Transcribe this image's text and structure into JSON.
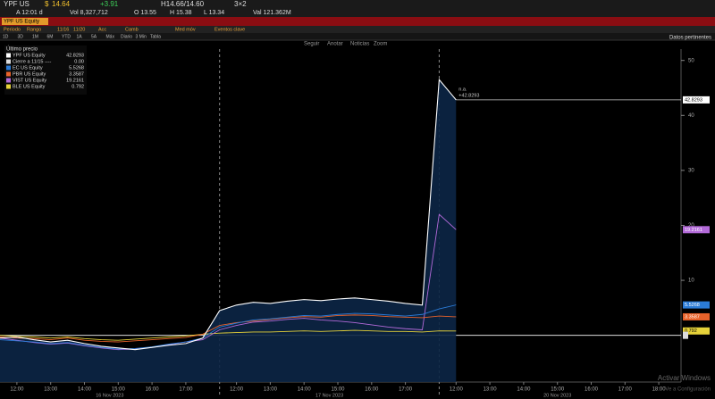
{
  "header": {
    "ticker": "YPF US",
    "currency": "$",
    "price": "14.64",
    "change": "+3.91",
    "hilo": "H14.66/14.60",
    "size": "3×2",
    "time": "A 12:01 d",
    "volume": "Vol 8,327,712",
    "open": "O 13.55",
    "high": "H 15.38",
    "low": "L 13.34",
    "value": "Val 121.362M"
  },
  "toolbar": {
    "security": "YPF US Equity",
    "items": [
      "Periodo",
      "Rango",
      "11/16",
      "11/20",
      "Acc",
      "Camb",
      "Med móv",
      "Eventos clave"
    ]
  },
  "periods": [
    "1D",
    "3D",
    "1M",
    "6M",
    "YTD",
    "1A",
    "5A",
    "Máx",
    "Diario",
    "3 Min",
    "Tabla"
  ],
  "chart_menu": [
    "Seguir",
    "Anotar",
    "Noticias",
    "Zoom"
  ],
  "side_label": "Datos pertinentes",
  "watermark": [
    "Activar Windows",
    "Ve a Configuración"
  ],
  "chart_data": {
    "type": "line",
    "legend_title": "Último precio",
    "categories": [
      null,
      "12:00",
      null,
      "13:00",
      null,
      "14:00",
      null,
      "15:00",
      null,
      "16:00",
      null,
      "17:00",
      null,
      null,
      "12:00",
      null,
      "13:00",
      null,
      "14:00",
      null,
      "15:00",
      null,
      "16:00",
      null,
      "17:00",
      null,
      null,
      "12:00",
      null,
      "13:00",
      null,
      "14:00",
      null,
      "15:00",
      null,
      "16:00",
      null,
      "17:00",
      null,
      "18:00"
    ],
    "x_groups": [
      "16 Nov 2023",
      "17 Nov 2023",
      "20 Nov 2023"
    ],
    "ylim": [
      -8.5,
      54.5
    ],
    "yticks": [
      10,
      20,
      30,
      40,
      50
    ],
    "reference": {
      "name": "Cierre a 11/15 ----",
      "value": {
        "value": 0,
        "label": "0.00"
      }
    },
    "annotations": [
      "n.a.",
      "+42.8293"
    ],
    "series": [
      {
        "name": "YPF US Equity",
        "color": "#ffffff",
        "fill": "#0c2646",
        "values": [
          -0.5,
          -0.3,
          -0.8,
          -1.2,
          -0.9,
          -1.5,
          -2.0,
          -2.3,
          -2.6,
          -2.2,
          -1.8,
          -1.5,
          -0.5,
          4.5,
          5.5,
          6.0,
          5.8,
          6.2,
          6.5,
          6.3,
          6.6,
          6.8,
          6.5,
          6.2,
          5.8,
          5.5,
          46.5,
          42.8293,
          null,
          null,
          null,
          null,
          null,
          null,
          null,
          null,
          null,
          null,
          null,
          null
        ]
      },
      {
        "name": "EC US Equity",
        "color": "#2b7bd6",
        "values": [
          -0.8,
          -1.0,
          -1.2,
          -1.5,
          -1.3,
          -1.8,
          -2.2,
          -2.5,
          -2.4,
          -2.1,
          -1.6,
          -1.2,
          -0.5,
          1.5,
          2.2,
          2.8,
          3.0,
          3.3,
          3.6,
          3.5,
          3.8,
          4.0,
          3.9,
          3.7,
          3.5,
          3.8,
          4.8,
          5.5268,
          null,
          null,
          null,
          null,
          null,
          null,
          null,
          null,
          null,
          null,
          null,
          null
        ]
      },
      {
        "name": "PBR US Equity",
        "color": "#e8622a",
        "values": [
          -0.3,
          -0.5,
          -0.6,
          -0.8,
          -0.5,
          -0.9,
          -1.1,
          -1.2,
          -1.0,
          -0.8,
          -0.6,
          -0.4,
          0.2,
          1.8,
          2.3,
          2.6,
          2.9,
          3.2,
          3.4,
          3.3,
          3.6,
          3.7,
          3.6,
          3.4,
          3.3,
          3.2,
          3.5,
          3.3587,
          null,
          null,
          null,
          null,
          null,
          null,
          null,
          null,
          null,
          null,
          null,
          null
        ]
      },
      {
        "name": "VIST US Equity",
        "color": "#b36ad9",
        "values": [
          -0.5,
          -0.9,
          -1.3,
          -1.6,
          -1.4,
          -1.9,
          -2.3,
          -2.6,
          -2.5,
          -2.2,
          -1.7,
          -1.2,
          -0.8,
          1.0,
          1.8,
          2.4,
          2.6,
          2.9,
          3.1,
          2.8,
          2.6,
          2.3,
          1.9,
          1.5,
          1.2,
          1.0,
          22.0,
          19.2161,
          null,
          null,
          null,
          null,
          null,
          null,
          null,
          null,
          null,
          null,
          null,
          null
        ]
      },
      {
        "name": "BLE US Equity",
        "color": "#e6d23a",
        "values": [
          0,
          -0.2,
          -0.3,
          -0.5,
          -0.3,
          -0.6,
          -0.8,
          -0.9,
          -0.7,
          -0.5,
          -0.3,
          -0.1,
          0.2,
          0.4,
          0.5,
          0.6,
          0.6,
          0.7,
          0.8,
          0.7,
          0.8,
          0.9,
          0.8,
          0.7,
          0.7,
          0.6,
          0.8,
          0.792,
          null,
          null,
          null,
          null,
          null,
          null,
          null,
          null,
          null,
          null,
          null,
          null
        ]
      }
    ]
  }
}
